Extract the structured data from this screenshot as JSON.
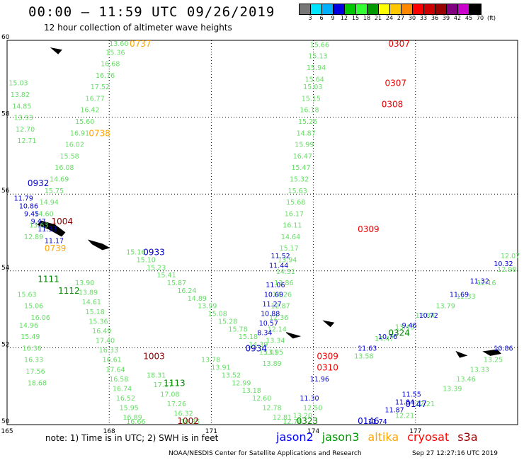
{
  "title": "00:00 – 11:59 UTC 09/26/2019",
  "subtitle": "12 hour collection of altimeter wave heights",
  "scale": {
    "unit": "(ft)",
    "labels": [
      "3",
      "6",
      "9",
      "12",
      "15",
      "18",
      "21",
      "24",
      "27",
      "30",
      "33",
      "36",
      "39",
      "42",
      "45",
      "70"
    ],
    "colors": [
      "#777777",
      "#00e5ff",
      "#00b0ff",
      "#0000e0",
      "#00c800",
      "#33ff33",
      "#009900",
      "#ffff00",
      "#ffc800",
      "#ff8800",
      "#ff0000",
      "#cc0000",
      "#990000",
      "#800080",
      "#cc00cc",
      "#000000"
    ]
  },
  "map": {
    "lon_range": [
      165,
      180
    ],
    "lat_range": [
      50,
      60
    ],
    "lon_ticks": [
      "165",
      "168",
      "171",
      "174",
      "177"
    ],
    "lat_ticks": [
      "50",
      "52",
      "54",
      "56",
      "58",
      "60"
    ]
  },
  "note": "note:  1) Time is in UTC;  2) SWH is in feet",
  "legend": [
    {
      "name": "jason2",
      "color": "#0000ff"
    },
    {
      "name": "jason3",
      "color": "#009900"
    },
    {
      "name": "altika",
      "color": "#ffa500"
    },
    {
      "name": "cryosat",
      "color": "#ff0000"
    },
    {
      "name": "s3a",
      "color": "#990000"
    }
  ],
  "footer_left": "NOAA/NESDIS Center for Satellite Applications and Research",
  "footer_right": "Sep 27 12:27:16 UTC 2019",
  "tracks": [
    {
      "name": "altika-track-north",
      "color": "#66dd66",
      "labels": [
        {
          "lon": 168.0,
          "lat": 59.98,
          "v": "13.60"
        },
        {
          "lon": 167.9,
          "lat": 59.7,
          "v": "15.36"
        },
        {
          "lon": 167.75,
          "lat": 59.4,
          "v": "16.68"
        },
        {
          "lon": 167.6,
          "lat": 59.1,
          "v": "16.76"
        },
        {
          "lon": 167.45,
          "lat": 58.8,
          "v": "17.52"
        },
        {
          "lon": 167.3,
          "lat": 58.5,
          "v": "16.77"
        },
        {
          "lon": 167.15,
          "lat": 58.2,
          "v": "16.42"
        },
        {
          "lon": 167.0,
          "lat": 57.9,
          "v": "15.60"
        },
        {
          "lon": 166.85,
          "lat": 57.6,
          "v": "16.91"
        },
        {
          "lon": 166.7,
          "lat": 57.3,
          "v": "16.02"
        },
        {
          "lon": 166.55,
          "lat": 57.0,
          "v": "15.58"
        },
        {
          "lon": 166.4,
          "lat": 56.7,
          "v": "16.08"
        },
        {
          "lon": 166.25,
          "lat": 56.4,
          "v": "14.69"
        },
        {
          "lon": 166.1,
          "lat": 56.1,
          "v": "15.75"
        },
        {
          "lon": 165.95,
          "lat": 55.8,
          "v": "14.94"
        },
        {
          "lon": 165.8,
          "lat": 55.5,
          "v": "14.60"
        },
        {
          "lon": 165.65,
          "lat": 55.2,
          "v": "13.63"
        },
        {
          "lon": 165.5,
          "lat": 54.9,
          "v": "12.89"
        }
      ]
    },
    {
      "name": "jason2-track-south",
      "color": "#0000cc",
      "labels": [
        {
          "lon": 165.2,
          "lat": 55.9,
          "v": "11.79"
        },
        {
          "lon": 165.35,
          "lat": 55.7,
          "v": "10.86"
        },
        {
          "lon": 165.5,
          "lat": 55.5,
          "v": "9.45"
        },
        {
          "lon": 165.7,
          "lat": 55.3,
          "v": "9.47"
        },
        {
          "lon": 165.9,
          "lat": 55.1,
          "v": "11.33"
        },
        {
          "lon": 166.1,
          "lat": 54.8,
          "v": "11.17"
        }
      ]
    },
    {
      "name": "jason3-track-east",
      "color": "#66dd66",
      "labels": [
        {
          "lon": 173.9,
          "lat": 59.9,
          "v": "15.66"
        },
        {
          "lon": 173.85,
          "lat": 59.6,
          "v": "15.13"
        },
        {
          "lon": 173.8,
          "lat": 59.3,
          "v": "15.94"
        },
        {
          "lon": 173.75,
          "lat": 59.0,
          "v": "15.64"
        },
        {
          "lon": 173.7,
          "lat": 58.8,
          "v": "15.03"
        },
        {
          "lon": 173.65,
          "lat": 58.5,
          "v": "15.15"
        },
        {
          "lon": 173.6,
          "lat": 58.2,
          "v": "16.18"
        },
        {
          "lon": 173.55,
          "lat": 57.9,
          "v": "15.26"
        },
        {
          "lon": 173.5,
          "lat": 57.6,
          "v": "14.87"
        },
        {
          "lon": 173.45,
          "lat": 57.3,
          "v": "15.99"
        },
        {
          "lon": 173.4,
          "lat": 57.0,
          "v": "16.47"
        },
        {
          "lon": 173.35,
          "lat": 56.7,
          "v": "15.47"
        },
        {
          "lon": 173.3,
          "lat": 56.4,
          "v": "15.32"
        },
        {
          "lon": 173.25,
          "lat": 56.1,
          "v": "15.63"
        },
        {
          "lon": 173.2,
          "lat": 55.8,
          "v": "15.68"
        },
        {
          "lon": 173.15,
          "lat": 55.5,
          "v": "16.17"
        },
        {
          "lon": 173.1,
          "lat": 55.2,
          "v": "16.11"
        },
        {
          "lon": 173.05,
          "lat": 54.9,
          "v": "14.64"
        },
        {
          "lon": 173.0,
          "lat": 54.6,
          "v": "15.17"
        },
        {
          "lon": 172.95,
          "lat": 54.3,
          "v": "13.94"
        },
        {
          "lon": 172.9,
          "lat": 54.0,
          "v": "14.31"
        },
        {
          "lon": 172.85,
          "lat": 53.7,
          "v": "13.86"
        },
        {
          "lon": 172.8,
          "lat": 53.4,
          "v": "14.26"
        },
        {
          "lon": 172.75,
          "lat": 53.1,
          "v": "12.87"
        },
        {
          "lon": 172.7,
          "lat": 52.8,
          "v": "12.36"
        },
        {
          "lon": 172.65,
          "lat": 52.5,
          "v": "12.14"
        },
        {
          "lon": 172.6,
          "lat": 52.2,
          "v": "13.34"
        },
        {
          "lon": 172.55,
          "lat": 51.9,
          "v": "13.95"
        },
        {
          "lon": 172.5,
          "lat": 51.6,
          "v": "13.89"
        }
      ]
    },
    {
      "name": "jason2-track-east",
      "color": "#0000cc",
      "labels": [
        {
          "lon": 172.75,
          "lat": 54.4,
          "v": "11.52"
        },
        {
          "lon": 172.7,
          "lat": 54.15,
          "v": "11.44"
        },
        {
          "lon": 172.6,
          "lat": 53.65,
          "v": "11.06"
        },
        {
          "lon": 172.55,
          "lat": 53.4,
          "v": "10.69"
        },
        {
          "lon": 172.5,
          "lat": 53.15,
          "v": "11.27"
        },
        {
          "lon": 172.45,
          "lat": 52.9,
          "v": "10.88"
        },
        {
          "lon": 172.4,
          "lat": 52.65,
          "v": "10.57"
        },
        {
          "lon": 172.35,
          "lat": 52.4,
          "v": "8.34"
        }
      ]
    },
    {
      "name": "jason3-track-diag",
      "color": "#66dd66",
      "labels": [
        {
          "lon": 168.5,
          "lat": 54.5,
          "v": "15.16"
        },
        {
          "lon": 168.8,
          "lat": 54.3,
          "v": "15.10"
        },
        {
          "lon": 169.1,
          "lat": 54.1,
          "v": "15.23"
        },
        {
          "lon": 169.4,
          "lat": 53.9,
          "v": "15.41"
        },
        {
          "lon": 169.7,
          "lat": 53.7,
          "v": "15.87"
        },
        {
          "lon": 170.0,
          "lat": 53.5,
          "v": "16.24"
        },
        {
          "lon": 170.3,
          "lat": 53.3,
          "v": "14.89"
        },
        {
          "lon": 170.6,
          "lat": 53.1,
          "v": "13.99"
        },
        {
          "lon": 170.9,
          "lat": 52.9,
          "v": "15.08"
        },
        {
          "lon": 171.2,
          "lat": 52.7,
          "v": "15.28"
        },
        {
          "lon": 171.5,
          "lat": 52.5,
          "v": "15.78"
        },
        {
          "lon": 171.8,
          "lat": 52.3,
          "v": "15.18"
        },
        {
          "lon": 172.1,
          "lat": 52.1,
          "v": "14.39"
        },
        {
          "lon": 172.4,
          "lat": 51.9,
          "v": "15.01"
        }
      ]
    },
    {
      "name": "jason3-track-west",
      "color": "#66dd66",
      "labels": [
        {
          "lon": 165.05,
          "lat": 58.9,
          "v": "15.03"
        },
        {
          "lon": 165.1,
          "lat": 58.6,
          "v": "13.82"
        },
        {
          "lon": 165.15,
          "lat": 58.3,
          "v": "14.85"
        },
        {
          "lon": 165.2,
          "lat": 58.0,
          "v": "13.93"
        },
        {
          "lon": 165.25,
          "lat": 57.7,
          "v": "12.70"
        },
        {
          "lon": 165.3,
          "lat": 57.4,
          "v": "12.71"
        }
      ]
    },
    {
      "name": "jason3-track-sw",
      "color": "#66dd66",
      "labels": [
        {
          "lon": 165.3,
          "lat": 53.4,
          "v": "15.63"
        },
        {
          "lon": 165.5,
          "lat": 53.1,
          "v": "15.06"
        },
        {
          "lon": 165.7,
          "lat": 52.8,
          "v": "16.06"
        },
        {
          "lon": 165.35,
          "lat": 52.6,
          "v": "14.96"
        },
        {
          "lon": 165.4,
          "lat": 52.3,
          "v": "15.49"
        },
        {
          "lon": 165.45,
          "lat": 52.0,
          "v": "16.36"
        },
        {
          "lon": 165.5,
          "lat": 51.7,
          "v": "16.33"
        },
        {
          "lon": 165.55,
          "lat": 51.4,
          "v": "17.56"
        },
        {
          "lon": 165.6,
          "lat": 51.1,
          "v": "18.68"
        }
      ]
    },
    {
      "name": "jason3-track-mid",
      "color": "#66dd66",
      "labels": [
        {
          "lon": 167.0,
          "lat": 53.7,
          "v": "13.90"
        },
        {
          "lon": 167.1,
          "lat": 53.45,
          "v": "13.89"
        },
        {
          "lon": 167.2,
          "lat": 53.2,
          "v": "14.61"
        },
        {
          "lon": 167.3,
          "lat": 52.95,
          "v": "15.18"
        },
        {
          "lon": 167.4,
          "lat": 52.7,
          "v": "15.36"
        },
        {
          "lon": 167.5,
          "lat": 52.45,
          "v": "16.49"
        },
        {
          "lon": 167.6,
          "lat": 52.2,
          "v": "17.40"
        },
        {
          "lon": 167.7,
          "lat": 51.95,
          "v": "16.33"
        },
        {
          "lon": 167.8,
          "lat": 51.7,
          "v": "16.61"
        },
        {
          "lon": 167.9,
          "lat": 51.45,
          "v": "17.64"
        },
        {
          "lon": 168.0,
          "lat": 51.2,
          "v": "16.58"
        },
        {
          "lon": 168.1,
          "lat": 50.95,
          "v": "16.74"
        },
        {
          "lon": 168.2,
          "lat": 50.7,
          "v": "16.52"
        },
        {
          "lon": 168.3,
          "lat": 50.45,
          "v": "15.95"
        },
        {
          "lon": 168.4,
          "lat": 50.2,
          "v": "16.89"
        },
        {
          "lon": 168.5,
          "lat": 49.95,
          "v": "16.66"
        }
      ]
    },
    {
      "name": "jason3-track-mid2",
      "color": "#66dd66",
      "labels": [
        {
          "lon": 169.1,
          "lat": 51.3,
          "v": "18.31"
        },
        {
          "lon": 169.3,
          "lat": 51.05,
          "v": "17.17"
        },
        {
          "lon": 169.5,
          "lat": 50.8,
          "v": "17.08"
        },
        {
          "lon": 169.7,
          "lat": 50.55,
          "v": "17.26"
        },
        {
          "lon": 169.9,
          "lat": 50.3,
          "v": "16.32"
        },
        {
          "lon": 170.1,
          "lat": 50.05,
          "v": "16.85"
        }
      ]
    },
    {
      "name": "jason3-track-se",
      "color": "#66dd66",
      "labels": [
        {
          "lon": 180.0,
          "lat": 54.4,
          "v": "12.07"
        },
        {
          "lon": 179.4,
          "lat": 54.05,
          "v": "12.98"
        },
        {
          "lon": 178.8,
          "lat": 53.7,
          "v": "12.16"
        },
        {
          "lon": 178.2,
          "lat": 53.35,
          "v": "12.33"
        },
        {
          "lon": 177.6,
          "lat": 53.1,
          "v": "13.79"
        },
        {
          "lon": 177.0,
          "lat": 52.85,
          "v": "12.84"
        },
        {
          "lon": 176.4,
          "lat": 52.55,
          "v": "13.43"
        },
        {
          "lon": 175.8,
          "lat": 52.25,
          "v": "14.47"
        },
        {
          "lon": 175.2,
          "lat": 51.8,
          "v": "13.58"
        }
      ]
    },
    {
      "name": "jason2-track-se",
      "color": "#0000cc",
      "labels": [
        {
          "lon": 179.3,
          "lat": 54.2,
          "v": "10.32"
        },
        {
          "lon": 178.6,
          "lat": 53.75,
          "v": "11.32"
        },
        {
          "lon": 178.0,
          "lat": 53.4,
          "v": "11.69"
        },
        {
          "lon": 177.1,
          "lat": 52.85,
          "v": "10.72"
        },
        {
          "lon": 176.6,
          "lat": 52.6,
          "v": "9.46"
        },
        {
          "lon": 175.9,
          "lat": 52.3,
          "v": "10.76"
        },
        {
          "lon": 175.3,
          "lat": 52.0,
          "v": "11.63"
        }
      ]
    },
    {
      "name": "jason2-track-sse",
      "color": "#0000cc",
      "labels": [
        {
          "lon": 179.3,
          "lat": 52.0,
          "v": "10.86"
        },
        {
          "lon": 176.6,
          "lat": 50.8,
          "v": "11.55"
        },
        {
          "lon": 176.4,
          "lat": 50.6,
          "v": "11.84"
        },
        {
          "lon": 176.1,
          "lat": 50.4,
          "v": "11.87"
        },
        {
          "lon": 175.6,
          "lat": 50.0,
          "v": "11.74"
        }
      ]
    },
    {
      "name": "jason3-track-ssw",
      "color": "#66dd66",
      "labels": [
        {
          "lon": 179.0,
          "lat": 51.7,
          "v": "13.25"
        },
        {
          "lon": 178.6,
          "lat": 51.45,
          "v": "13.33"
        },
        {
          "lon": 178.2,
          "lat": 51.2,
          "v": "13.46"
        },
        {
          "lon": 177.8,
          "lat": 50.95,
          "v": "13.39"
        },
        {
          "lon": 177.0,
          "lat": 50.55,
          "v": "12.21"
        },
        {
          "lon": 176.4,
          "lat": 50.25,
          "v": "12.21"
        }
      ]
    },
    {
      "name": "jason2-track-center",
      "color": "#0000cc",
      "labels": [
        {
          "lon": 173.9,
          "lat": 51.2,
          "v": "11.96"
        },
        {
          "lon": 173.6,
          "lat": 50.7,
          "v": "11.30"
        }
      ]
    },
    {
      "name": "jason3-track-center-low",
      "color": "#66dd66",
      "labels": [
        {
          "lon": 170.7,
          "lat": 51.7,
          "v": "13.78"
        },
        {
          "lon": 171.0,
          "lat": 51.5,
          "v": "13.91"
        },
        {
          "lon": 171.3,
          "lat": 51.3,
          "v": "13.52"
        },
        {
          "lon": 171.6,
          "lat": 51.1,
          "v": "12.99"
        },
        {
          "lon": 171.9,
          "lat": 50.9,
          "v": "13.18"
        },
        {
          "lon": 172.2,
          "lat": 50.7,
          "v": "12.60"
        },
        {
          "lon": 172.5,
          "lat": 50.45,
          "v": "12.78"
        },
        {
          "lon": 172.8,
          "lat": 50.2,
          "v": "12.81"
        },
        {
          "lon": 173.1,
          "lat": 50.0,
          "v": "12.76"
        },
        {
          "lon": 173.4,
          "lat": 50.25,
          "v": "13.20"
        },
        {
          "lon": 173.7,
          "lat": 50.45,
          "v": "12.50"
        }
      ]
    }
  ],
  "times": [
    {
      "lon": 168.6,
      "lat": 59.97,
      "v": "0737",
      "color": "#ffa500"
    },
    {
      "lon": 167.4,
      "lat": 57.6,
      "v": "0738",
      "color": "#ffa500"
    },
    {
      "lon": 166.1,
      "lat": 54.6,
      "v": "0739",
      "color": "#ffa500"
    },
    {
      "lon": 176.2,
      "lat": 59.97,
      "v": "0307",
      "color": "#ee0000"
    },
    {
      "lon": 176.1,
      "lat": 58.9,
      "v": "0307",
      "color": "#ee0000"
    },
    {
      "lon": 176.0,
      "lat": 58.35,
      "v": "0308",
      "color": "#ee0000"
    },
    {
      "lon": 175.3,
      "lat": 55.1,
      "v": "0309",
      "color": "#ee0000"
    },
    {
      "lon": 174.1,
      "lat": 51.8,
      "v": "0309",
      "color": "#ee0000"
    },
    {
      "lon": 174.1,
      "lat": 51.5,
      "v": "0310",
      "color": "#ee0000"
    },
    {
      "lon": 165.6,
      "lat": 56.3,
      "v": "0932",
      "color": "#0000cc"
    },
    {
      "lon": 169.0,
      "lat": 54.5,
      "v": "0933",
      "color": "#0000cc"
    },
    {
      "lon": 172.0,
      "lat": 52.0,
      "v": "0934",
      "color": "#0000cc"
    },
    {
      "lon": 176.7,
      "lat": 50.55,
      "v": "0147",
      "color": "#0000cc"
    },
    {
      "lon": 175.3,
      "lat": 50.0,
      "v": "0146",
      "color": "#0000cc"
    },
    {
      "lon": 165.9,
      "lat": 53.8,
      "v": "1111",
      "color": "#008800"
    },
    {
      "lon": 166.5,
      "lat": 53.5,
      "v": "1112",
      "color": "#008800"
    },
    {
      "lon": 169.6,
      "lat": 51.1,
      "v": "1113",
      "color": "#008800"
    },
    {
      "lon": 176.2,
      "lat": 52.4,
      "v": "0324",
      "color": "#008800"
    },
    {
      "lon": 173.5,
      "lat": 49.95,
      "v": "0323",
      "color": "#008800"
    },
    {
      "lon": 166.3,
      "lat": 55.3,
      "v": "1004",
      "color": "#880000"
    },
    {
      "lon": 169.0,
      "lat": 51.8,
      "v": "1003",
      "color": "#880000"
    },
    {
      "lon": 170.0,
      "lat": 50.0,
      "v": "1002",
      "color": "#880000"
    }
  ]
}
